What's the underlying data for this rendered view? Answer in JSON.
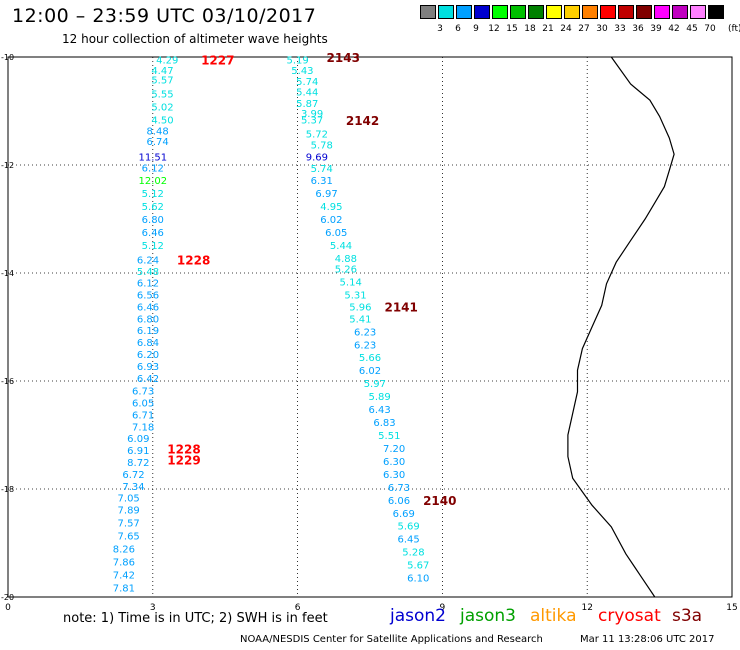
{
  "header": {
    "title": "12:00 – 23:59 UTC 03/10/2017",
    "subtitle": "12 hour collection of altimeter wave heights"
  },
  "colorbar": {
    "unit_label": "(ft)",
    "bins": [
      {
        "label": "3",
        "color": "#7f7f7f"
      },
      {
        "label": "6",
        "color": "#00e0e0"
      },
      {
        "label": "9",
        "color": "#00a0ff"
      },
      {
        "label": "12",
        "color": "#0000d0"
      },
      {
        "label": "15",
        "color": "#00ff00"
      },
      {
        "label": "18",
        "color": "#00c000"
      },
      {
        "label": "21",
        "color": "#008000"
      },
      {
        "label": "24",
        "color": "#ffff00"
      },
      {
        "label": "27",
        "color": "#ffd000"
      },
      {
        "label": "30",
        "color": "#ff8000"
      },
      {
        "label": "33",
        "color": "#ff0000"
      },
      {
        "label": "36",
        "color": "#c00000"
      },
      {
        "label": "39",
        "color": "#800000"
      },
      {
        "label": "42",
        "color": "#ff00ff"
      },
      {
        "label": "45",
        "color": "#c000c0"
      },
      {
        "label": "70",
        "color": "#ff80ff"
      },
      {
        "label": "",
        "color": "#000000"
      }
    ]
  },
  "map": {
    "lon_min": 0,
    "lon_max": 15,
    "lat_min": -20,
    "lat_max": -10,
    "x_ticks": [
      "0",
      "3",
      "6",
      "9",
      "12",
      "15"
    ],
    "y_ticks": [
      "-10",
      "-12",
      "-14",
      "-16",
      "-18",
      "-20"
    ],
    "coastline": [
      [
        12.5,
        -10
      ],
      [
        12.9,
        -10.5
      ],
      [
        13.3,
        -10.8
      ],
      [
        13.5,
        -11.1
      ],
      [
        13.7,
        -11.5
      ],
      [
        13.8,
        -11.8
      ],
      [
        13.7,
        -12.1
      ],
      [
        13.6,
        -12.4
      ],
      [
        13.4,
        -12.7
      ],
      [
        13.2,
        -13
      ],
      [
        12.9,
        -13.4
      ],
      [
        12.6,
        -13.8
      ],
      [
        12.4,
        -14.2
      ],
      [
        12.3,
        -14.6
      ],
      [
        12.1,
        -15
      ],
      [
        11.9,
        -15.4
      ],
      [
        11.8,
        -15.8
      ],
      [
        11.8,
        -16.2
      ],
      [
        11.7,
        -16.6
      ],
      [
        11.6,
        -17
      ],
      [
        11.6,
        -17.4
      ],
      [
        11.7,
        -17.8
      ],
      [
        12.1,
        -18.3
      ],
      [
        12.5,
        -18.7
      ],
      [
        12.8,
        -19.2
      ],
      [
        13.1,
        -19.6
      ],
      [
        13.4,
        -20
      ]
    ],
    "passes": [
      {
        "sat": "cryosat",
        "label": "1227",
        "label_lon": 4.0,
        "label_lat": -10.05,
        "label_color": "#ff0000",
        "points": [
          {
            "lon": 3.3,
            "lat": -10.05,
            "v": "4.29"
          },
          {
            "lon": 3.2,
            "lat": -10.24,
            "v": "4.47"
          },
          {
            "lon": 3.2,
            "lat": -10.42,
            "v": "5.57"
          },
          {
            "lon": 3.2,
            "lat": -10.68,
            "v": "5.55"
          },
          {
            "lon": 3.2,
            "lat": -10.92,
            "v": "5.02"
          },
          {
            "lon": 3.2,
            "lat": -11.16,
            "v": "4.50"
          },
          {
            "lon": 3.1,
            "lat": -11.36,
            "v": "8.48"
          },
          {
            "lon": 3.1,
            "lat": -11.56,
            "v": "6.74"
          },
          {
            "lon": 3.0,
            "lat": -11.84,
            "v": "11.51"
          },
          {
            "lon": 3.0,
            "lat": -12.05,
            "v": "6.12"
          },
          {
            "lon": 3.0,
            "lat": -12.28,
            "v": "12.02"
          },
          {
            "lon": 3.0,
            "lat": -12.52,
            "v": "5.12"
          },
          {
            "lon": 3.0,
            "lat": -12.76,
            "v": "5.62"
          },
          {
            "lon": 3.0,
            "lat": -13.0,
            "v": "6.80"
          },
          {
            "lon": 3.0,
            "lat": -13.24,
            "v": "6.46"
          },
          {
            "lon": 3.0,
            "lat": -13.48,
            "v": "5.12"
          },
          {
            "lon": 2.9,
            "lat": -13.75,
            "v": "6.24"
          },
          {
            "lon": 2.9,
            "lat": -13.96,
            "v": "5.48"
          },
          {
            "lon": 2.9,
            "lat": -14.18,
            "v": "6.12"
          },
          {
            "lon": 2.9,
            "lat": -14.4,
            "v": "6.56"
          },
          {
            "lon": 2.9,
            "lat": -14.62,
            "v": "6.46"
          },
          {
            "lon": 2.9,
            "lat": -14.84,
            "v": "6.80"
          },
          {
            "lon": 2.9,
            "lat": -15.06,
            "v": "6.19"
          },
          {
            "lon": 2.9,
            "lat": -15.28,
            "v": "6.84"
          },
          {
            "lon": 2.9,
            "lat": -15.5,
            "v": "6.20"
          },
          {
            "lon": 2.9,
            "lat": -15.72,
            "v": "6.93"
          },
          {
            "lon": 2.9,
            "lat": -15.94,
            "v": "6.42"
          }
        ]
      },
      {
        "sat": "cryosat",
        "label": "1228",
        "label_lon": 3.5,
        "label_lat": -13.75,
        "label_color": "#ff0000",
        "points": []
      },
      {
        "sat": "cryosat",
        "label": "1228",
        "label_lon": 3.3,
        "label_lat": -17.25,
        "label_color": "#ff0000",
        "points": [
          {
            "lon": 2.8,
            "lat": -16.18,
            "v": "6.73"
          },
          {
            "lon": 2.8,
            "lat": -16.4,
            "v": "6.05"
          },
          {
            "lon": 2.8,
            "lat": -16.62,
            "v": "6.71"
          },
          {
            "lon": 2.8,
            "lat": -16.84,
            "v": "7.18"
          },
          {
            "lon": 2.7,
            "lat": -17.06,
            "v": "6.09"
          },
          {
            "lon": 2.7,
            "lat": -17.28,
            "v": "6.91"
          },
          {
            "lon": 2.7,
            "lat": -17.5,
            "v": "8.72"
          },
          {
            "lon": 2.6,
            "lat": -17.72,
            "v": "6.72"
          },
          {
            "lon": 2.6,
            "lat": -17.94,
            "v": "7.34"
          },
          {
            "lon": 2.5,
            "lat": -18.16,
            "v": "7.05"
          },
          {
            "lon": 2.5,
            "lat": -18.38,
            "v": "7.89"
          },
          {
            "lon": 2.5,
            "lat": -18.62,
            "v": "7.57"
          },
          {
            "lon": 2.5,
            "lat": -18.86,
            "v": "7.65"
          },
          {
            "lon": 2.4,
            "lat": -19.1,
            "v": "8.26"
          },
          {
            "lon": 2.4,
            "lat": -19.34,
            "v": "7.86"
          },
          {
            "lon": 2.4,
            "lat": -19.58,
            "v": "7.42"
          },
          {
            "lon": 2.4,
            "lat": -19.82,
            "v": "7.81"
          }
        ]
      },
      {
        "sat": "cryosat",
        "label": "1229",
        "label_lon": 3.3,
        "label_lat": -17.45,
        "label_color": "#ff0000",
        "points": []
      },
      {
        "sat": "s3a",
        "label": "2143",
        "label_lon": 6.6,
        "label_lat": -10.0,
        "label_color": "#800000",
        "points": [
          {
            "lon": 6.0,
            "lat": -10.05,
            "v": "5.19"
          },
          {
            "lon": 6.1,
            "lat": -10.24,
            "v": "5.43"
          },
          {
            "lon": 6.2,
            "lat": -10.44,
            "v": "5.74"
          },
          {
            "lon": 6.2,
            "lat": -10.64,
            "v": "5.44"
          },
          {
            "lon": 6.2,
            "lat": -10.85,
            "v": "5.87"
          },
          {
            "lon": 6.3,
            "lat": -11.04,
            "v": "3.99"
          },
          {
            "lon": 6.3,
            "lat": -11.16,
            "v": "5.37"
          }
        ]
      },
      {
        "sat": "s3a",
        "label": "2142",
        "label_lon": 7.0,
        "label_lat": -11.17,
        "label_color": "#800000",
        "points": [
          {
            "lon": 6.4,
            "lat": -11.42,
            "v": "5.72"
          },
          {
            "lon": 6.5,
            "lat": -11.62,
            "v": "5.78"
          },
          {
            "lon": 6.4,
            "lat": -11.84,
            "v": "9.69"
          },
          {
            "lon": 6.5,
            "lat": -12.06,
            "v": "5.74"
          },
          {
            "lon": 6.5,
            "lat": -12.28,
            "v": "6.31"
          },
          {
            "lon": 6.6,
            "lat": -12.52,
            "v": "6.97"
          },
          {
            "lon": 6.7,
            "lat": -12.76,
            "v": "4.95"
          },
          {
            "lon": 6.7,
            "lat": -13.0,
            "v": "6.02"
          },
          {
            "lon": 6.8,
            "lat": -13.24,
            "v": "6.05"
          },
          {
            "lon": 6.9,
            "lat": -13.48,
            "v": "5.44"
          },
          {
            "lon": 7.0,
            "lat": -13.72,
            "v": "4.88"
          },
          {
            "lon": 7.0,
            "lat": -13.92,
            "v": "5.26"
          },
          {
            "lon": 7.1,
            "lat": -14.16,
            "v": "5.14"
          },
          {
            "lon": 7.2,
            "lat": -14.4,
            "v": "5.31"
          },
          {
            "lon": 7.3,
            "lat": -14.62,
            "v": "5.96"
          },
          {
            "lon": 7.3,
            "lat": -14.84,
            "v": "5.41"
          },
          {
            "lon": 7.4,
            "lat": -15.08,
            "v": "6.23"
          },
          {
            "lon": 7.4,
            "lat": -15.32,
            "v": "6.23"
          },
          {
            "lon": 7.5,
            "lat": -15.56,
            "v": "5.66"
          },
          {
            "lon": 7.5,
            "lat": -15.8,
            "v": "6.02"
          }
        ]
      },
      {
        "sat": "s3a",
        "label": "2141",
        "label_lon": 7.8,
        "label_lat": -14.62,
        "label_color": "#800000",
        "points": [
          {
            "lon": 7.6,
            "lat": -16.04,
            "v": "5.97"
          },
          {
            "lon": 7.7,
            "lat": -16.28,
            "v": "5.89"
          },
          {
            "lon": 7.7,
            "lat": -16.52,
            "v": "6.43"
          },
          {
            "lon": 7.8,
            "lat": -16.76,
            "v": "6.83"
          },
          {
            "lon": 7.9,
            "lat": -17.0,
            "v": "5.51"
          },
          {
            "lon": 8.0,
            "lat": -17.24,
            "v": "7.20"
          },
          {
            "lon": 8.0,
            "lat": -17.48,
            "v": "6.30"
          },
          {
            "lon": 8.0,
            "lat": -17.72,
            "v": "6.30"
          },
          {
            "lon": 8.1,
            "lat": -17.96,
            "v": "6.73"
          },
          {
            "lon": 8.1,
            "lat": -18.2,
            "v": "6.06"
          },
          {
            "lon": 8.2,
            "lat": -18.44,
            "v": "6.69"
          },
          {
            "lon": 8.3,
            "lat": -18.68,
            "v": "5.69"
          },
          {
            "lon": 8.3,
            "lat": -18.92,
            "v": "6.45"
          },
          {
            "lon": 8.4,
            "lat": -19.16,
            "v": "5.28"
          },
          {
            "lon": 8.5,
            "lat": -19.4,
            "v": "5.67"
          },
          {
            "lon": 8.5,
            "lat": -19.64,
            "v": "6.10"
          }
        ]
      },
      {
        "sat": "s3a",
        "label": "2140",
        "label_lon": 8.6,
        "label_lat": -18.2,
        "label_color": "#800000",
        "points": []
      }
    ]
  },
  "footer": {
    "note": "note: 1) Time is in UTC; 2) SWH is in feet",
    "satellites": [
      {
        "name": "jason2",
        "color": "#0000d0"
      },
      {
        "name": "jason3",
        "color": "#00a000"
      },
      {
        "name": "altika",
        "color": "#ff9900"
      },
      {
        "name": "cryosat",
        "color": "#ff0000"
      },
      {
        "name": "s3a",
        "color": "#800000"
      }
    ],
    "credit": "NOAA/NESDIS Center for Satellite Applications and Research",
    "timestamp": "Mar 11 13:28:06 UTC 2017"
  }
}
